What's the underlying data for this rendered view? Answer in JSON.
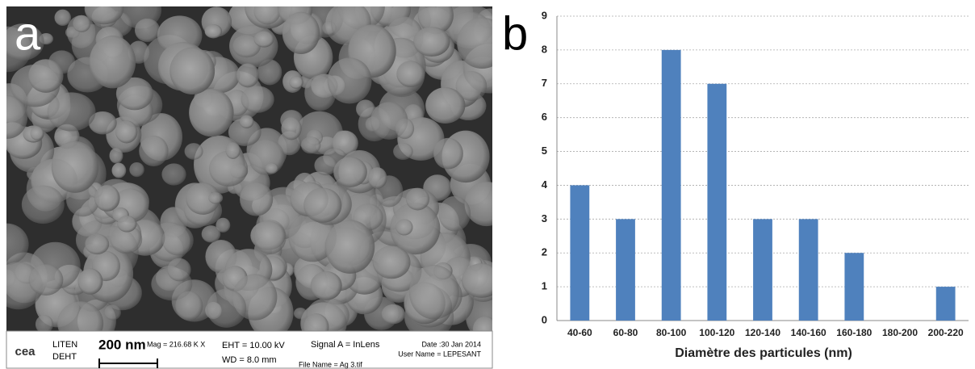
{
  "sem_image": {
    "label": "a",
    "info": {
      "logo": "cea",
      "org1": "LITEN",
      "org2": "DEHT",
      "scale": "200 nm",
      "mag": "Mag = 216.68 K X",
      "eht": "EHT = 10.00 kV",
      "wd": "WD = 8.0 mm",
      "signal": "Signal A = InLens",
      "file": "File Name = Ag 3.tif",
      "date": "Date :30 Jan 2014",
      "user": "User Name = LEPESANT"
    }
  },
  "chart_data": {
    "type": "bar",
    "panel_label": "b",
    "xlabel": "Diamètre des particules (nm)",
    "categories": [
      "40-60",
      "60-80",
      "80-100",
      "100-120",
      "120-140",
      "140-160",
      "160-180",
      "180-200",
      "200-220"
    ],
    "values": [
      4,
      3,
      8,
      7,
      3,
      3,
      2,
      0,
      1
    ],
    "color": "#4f81bd",
    "ylim": [
      0,
      9
    ],
    "yticks": [
      0,
      1,
      2,
      3,
      4,
      5,
      6,
      7,
      8,
      9
    ],
    "grid": true
  }
}
